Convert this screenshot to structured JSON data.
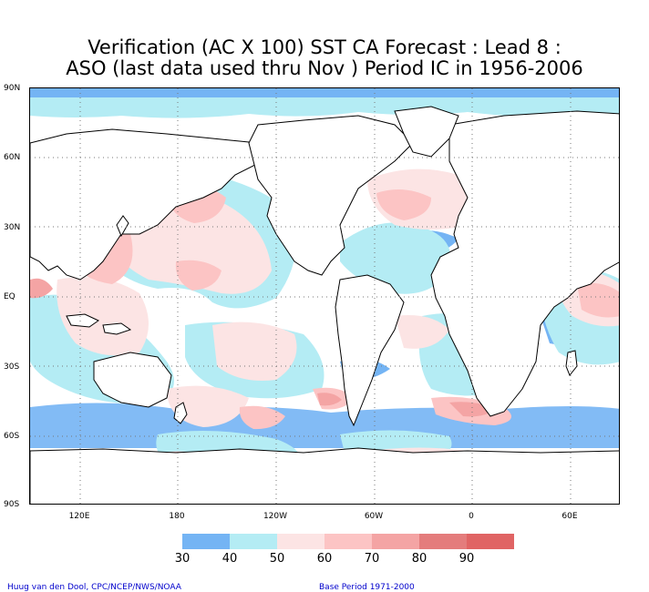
{
  "title_line1": "Verification (AC X 100) SST CA Forecast : Lead 8 :",
  "title_line2": "ASO (last data used thru Nov ) Period IC in 1956-2006",
  "lat_labels": [
    "90N",
    "60N",
    "30N",
    "EQ",
    "30S",
    "60S",
    "90S"
  ],
  "lon_labels": [
    "120E",
    "180",
    "120W",
    "60W",
    "0",
    "60E"
  ],
  "legend": {
    "labels": [
      "30",
      "40",
      "50",
      "60",
      "70",
      "80",
      "90"
    ],
    "colors": [
      "#74b4f4",
      "#b4ecf4",
      "#fce4e4",
      "#fcc4c4",
      "#f4a4a4",
      "#e47c7c",
      "#e06464"
    ]
  },
  "credit_left": "Huug van den Dool, CPC/NCEP/NWS/NOAA",
  "credit_right": "Base Period 1971-2000"
}
